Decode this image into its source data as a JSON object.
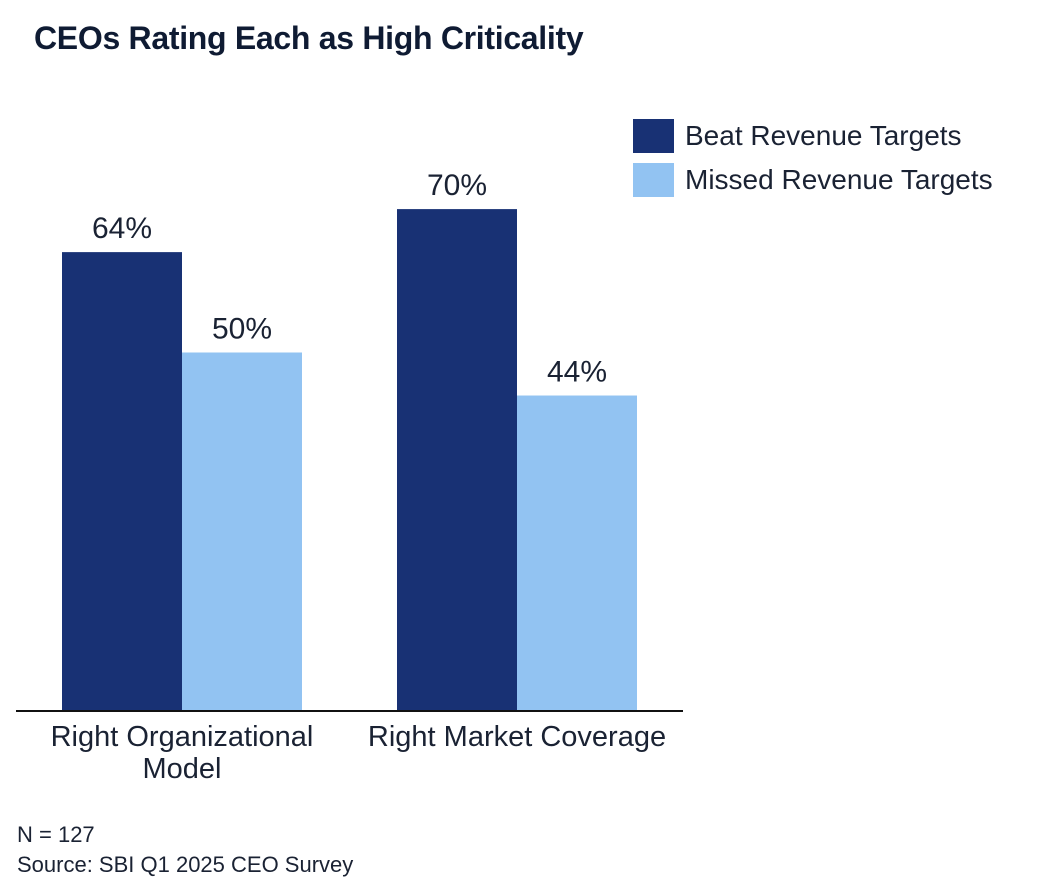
{
  "title": "CEOs Rating Each as High Criticality",
  "colors": {
    "beat": "#183174",
    "missed": "#92c3f2",
    "axis": "#111111",
    "text": "#1a2233"
  },
  "legend": {
    "items": [
      {
        "label": "Beat Revenue Targets",
        "color": "#183174"
      },
      {
        "label": "Missed Revenue Targets",
        "color": "#92c3f2"
      }
    ]
  },
  "chart_data": {
    "type": "bar",
    "title": "CEOs Rating Each as High Criticality",
    "categories": [
      [
        "Right Organizational",
        "Model"
      ],
      [
        "Right Market Coverage"
      ]
    ],
    "series": [
      {
        "name": "Beat Revenue Targets",
        "values": [
          64,
          70
        ],
        "labels": [
          "64%",
          "70%"
        ],
        "color": "#183174"
      },
      {
        "name": "Missed Revenue Targets",
        "values": [
          50,
          44
        ],
        "labels": [
          "50%",
          "44%"
        ],
        "color": "#92c3f2"
      }
    ],
    "xlabel": "",
    "ylabel": "",
    "ylim": [
      0,
      100
    ],
    "grid": false,
    "legend_position": "top-right"
  },
  "footnotes": {
    "n": "N = 127",
    "source": "Source: SBI Q1 2025 CEO Survey"
  }
}
